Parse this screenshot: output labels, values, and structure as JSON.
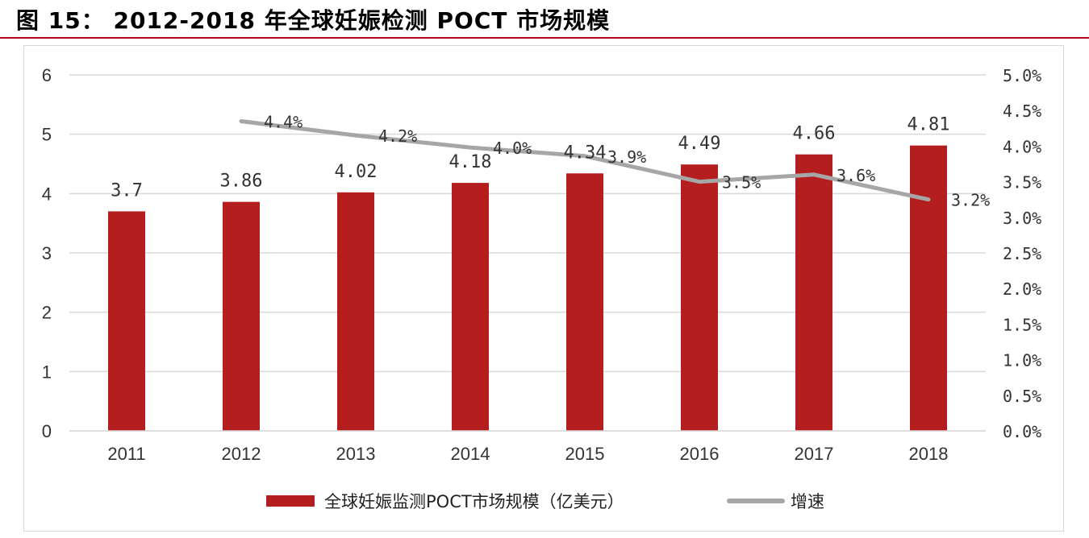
{
  "title": "图 15： 2012-2018 年全球妊娠检测 POCT 市场规模",
  "colors": {
    "bar": "#b41e1e",
    "line": "#a6a6a6",
    "accent": "#b0001e",
    "grid": "#d9d9d9"
  },
  "chart_data": {
    "type": "bar",
    "categories": [
      "2011",
      "2012",
      "2013",
      "2014",
      "2015",
      "2016",
      "2017",
      "2018"
    ],
    "series": [
      {
        "name": "全球妊娠监测POCT市场规模（亿美元）",
        "type": "bar",
        "axis": "left",
        "values": [
          3.7,
          3.86,
          4.02,
          4.18,
          4.34,
          4.49,
          4.66,
          4.81
        ],
        "labels": [
          "3.7",
          "3.86",
          "4.02",
          "4.18",
          "4.34",
          "4.49",
          "4.66",
          "4.81"
        ]
      },
      {
        "name": "增速",
        "type": "line",
        "axis": "right",
        "values": [
          null,
          4.35,
          4.15,
          3.98,
          3.86,
          3.5,
          3.6,
          3.25
        ],
        "labels": [
          "",
          "4.4%",
          "4.2%",
          "4.0%",
          "3.9%",
          "3.5%",
          "3.6%",
          "3.2%"
        ]
      }
    ],
    "y_left": {
      "min": 0,
      "max": 6,
      "ticks": [
        "0",
        "1",
        "2",
        "3",
        "4",
        "5",
        "6"
      ]
    },
    "y_right": {
      "min": 0,
      "max": 5,
      "ticks": [
        "0.0%",
        "0.5%",
        "1.0%",
        "1.5%",
        "2.0%",
        "2.5%",
        "3.0%",
        "3.5%",
        "4.0%",
        "4.5%",
        "5.0%"
      ]
    },
    "grid": true,
    "legend_position": "bottom"
  }
}
